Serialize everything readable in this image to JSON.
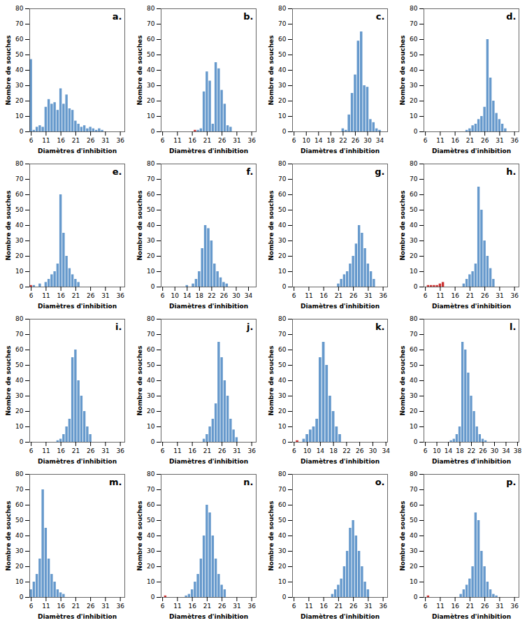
{
  "chart_data": [
    {
      "type": "bar",
      "annotation": "a.",
      "xlabel": "Diamètres d'inhibition",
      "ylabel": "Nombre de souches",
      "x": [
        6,
        7,
        8,
        9,
        10,
        11,
        12,
        13,
        14,
        15,
        16,
        17,
        18,
        19,
        20,
        21,
        22,
        23,
        24,
        25,
        26,
        27,
        28,
        29,
        30
      ],
      "values": [
        47,
        1,
        3,
        4,
        3,
        16,
        21,
        18,
        19,
        14,
        28,
        18,
        24,
        15,
        14,
        7,
        5,
        3,
        4,
        2,
        3,
        2,
        1,
        2,
        1
      ],
      "colors": [
        "#6699CC",
        "#6699CC",
        "#6699CC",
        "#6699CC",
        "#6699CC",
        "#6699CC",
        "#6699CC",
        "#6699CC",
        "#6699CC",
        "#6699CC",
        "#6699CC",
        "#6699CC",
        "#6699CC",
        "#6699CC",
        "#6699CC",
        "#6699CC",
        "#6699CC",
        "#6699CC",
        "#6699CC",
        "#6699CC",
        "#6699CC",
        "#6699CC",
        "#6699CC",
        "#6699CC",
        "#6699CC"
      ],
      "xlim": [
        5.5,
        37.5
      ],
      "xticks": [
        6,
        11,
        16,
        21,
        26,
        31,
        36
      ],
      "ylim": [
        0,
        80
      ],
      "yticks": [
        0,
        10,
        20,
        30,
        40,
        50,
        60,
        70,
        80
      ]
    },
    {
      "type": "bar",
      "annotation": "b.",
      "xlabel": "Diamètres d'inhibition",
      "ylabel": "Nombre de souches",
      "x": [
        18,
        19,
        20,
        21,
        22,
        23,
        24,
        25,
        26,
        27,
        28,
        29,
        17
      ],
      "values": [
        1,
        2,
        26,
        39,
        33,
        5,
        45,
        41,
        27,
        18,
        4,
        3,
        1
      ],
      "colors": [
        "#6699CC",
        "#6699CC",
        "#6699CC",
        "#6699CC",
        "#6699CC",
        "#6699CC",
        "#6699CC",
        "#6699CC",
        "#6699CC",
        "#6699CC",
        "#6699CC",
        "#6699CC",
        "#CC3333"
      ],
      "xlim": [
        5.5,
        37.5
      ],
      "xticks": [
        6,
        11,
        16,
        21,
        26,
        31,
        36
      ],
      "ylim": [
        0,
        80
      ],
      "yticks": [
        0,
        10,
        20,
        30,
        40,
        50,
        60,
        70,
        80
      ]
    },
    {
      "type": "bar",
      "annotation": "c.",
      "xlabel": "Diamètres d'inhibition",
      "ylabel": "Nombre de souches",
      "x": [
        22,
        23,
        24,
        25,
        26,
        27,
        28,
        29,
        30,
        31,
        32,
        33,
        34
      ],
      "values": [
        2,
        1,
        11,
        25,
        37,
        59,
        65,
        30,
        29,
        8,
        6,
        2,
        1
      ],
      "colors": [
        "#6699CC",
        "#6699CC",
        "#6699CC",
        "#6699CC",
        "#6699CC",
        "#6699CC",
        "#6699CC",
        "#6699CC",
        "#6699CC",
        "#6699CC",
        "#6699CC",
        "#6699CC",
        "#6699CC"
      ],
      "xlim": [
        5.5,
        36.5
      ],
      "xticks": [
        6,
        10,
        14,
        18,
        22,
        26,
        30,
        34
      ],
      "ylim": [
        0,
        80
      ],
      "yticks": [
        0,
        10,
        20,
        30,
        40,
        50,
        60,
        70,
        80
      ]
    },
    {
      "type": "bar",
      "annotation": "d.",
      "xlabel": "Diamètres d'inhibition",
      "ylabel": "Nombre de souches",
      "x": [
        20,
        21,
        22,
        23,
        24,
        25,
        26,
        27,
        28,
        29,
        30,
        31,
        32,
        33
      ],
      "values": [
        1,
        2,
        4,
        5,
        8,
        10,
        16,
        60,
        35,
        20,
        12,
        8,
        5,
        2
      ],
      "colors": [
        "#6699CC",
        "#6699CC",
        "#6699CC",
        "#6699CC",
        "#6699CC",
        "#6699CC",
        "#6699CC",
        "#6699CC",
        "#6699CC",
        "#6699CC",
        "#6699CC",
        "#6699CC",
        "#6699CC",
        "#6699CC"
      ],
      "xlim": [
        5.5,
        37.5
      ],
      "xticks": [
        6,
        11,
        16,
        21,
        26,
        31,
        36
      ],
      "ylim": [
        0,
        80
      ],
      "yticks": [
        0,
        10,
        20,
        30,
        40,
        50,
        60,
        70,
        80
      ]
    },
    {
      "type": "bar",
      "annotation": "e.",
      "xlabel": "Diamètres d'inhibition",
      "ylabel": "Nombre de souches",
      "x": [
        7,
        9,
        11,
        12,
        13,
        14,
        15,
        16,
        17,
        18,
        19,
        20,
        21,
        22,
        6
      ],
      "values": [
        1,
        2,
        3,
        5,
        8,
        10,
        15,
        60,
        35,
        20,
        12,
        8,
        5,
        3,
        1
      ],
      "colors": [
        "#6699CC",
        "#6699CC",
        "#6699CC",
        "#6699CC",
        "#6699CC",
        "#6699CC",
        "#6699CC",
        "#6699CC",
        "#6699CC",
        "#6699CC",
        "#6699CC",
        "#6699CC",
        "#6699CC",
        "#6699CC",
        "#CC3333"
      ],
      "xlim": [
        5.5,
        37.5
      ],
      "xticks": [
        6,
        11,
        16,
        21,
        26,
        31,
        36
      ],
      "ylim": [
        0,
        80
      ],
      "yticks": [
        0,
        10,
        20,
        30,
        40,
        50,
        60,
        70,
        80
      ]
    },
    {
      "type": "bar",
      "annotation": "f.",
      "xlabel": "Diamètres d'inhibition",
      "ylabel": "Nombre de souches",
      "x": [
        14,
        16,
        17,
        18,
        19,
        20,
        21,
        22,
        23,
        24,
        25,
        26,
        27
      ],
      "values": [
        1,
        2,
        5,
        10,
        25,
        40,
        38,
        30,
        15,
        10,
        6,
        3,
        2
      ],
      "colors": [
        "#6699CC",
        "#6699CC",
        "#6699CC",
        "#6699CC",
        "#6699CC",
        "#6699CC",
        "#6699CC",
        "#6699CC",
        "#6699CC",
        "#6699CC",
        "#6699CC",
        "#6699CC",
        "#6699CC"
      ],
      "xlim": [
        5.5,
        36.5
      ],
      "xticks": [
        6,
        10,
        14,
        18,
        22,
        26,
        30,
        34
      ],
      "ylim": [
        0,
        80
      ],
      "yticks": [
        0,
        10,
        20,
        30,
        40,
        50,
        60,
        70,
        80
      ]
    },
    {
      "type": "bar",
      "annotation": "g.",
      "xlabel": "Diamètres d'inhibition",
      "ylabel": "Nombre de souches",
      "x": [
        21,
        22,
        23,
        24,
        25,
        26,
        27,
        28,
        29,
        30,
        31,
        32,
        33
      ],
      "values": [
        2,
        5,
        8,
        10,
        15,
        20,
        28,
        40,
        35,
        25,
        15,
        10,
        5
      ],
      "colors": [
        "#6699CC",
        "#6699CC",
        "#6699CC",
        "#6699CC",
        "#6699CC",
        "#6699CC",
        "#6699CC",
        "#6699CC",
        "#6699CC",
        "#6699CC",
        "#6699CC",
        "#6699CC",
        "#6699CC"
      ],
      "xlim": [
        5.5,
        37.5
      ],
      "xticks": [
        6,
        11,
        16,
        21,
        26,
        31,
        36
      ],
      "ylim": [
        0,
        80
      ],
      "yticks": [
        0,
        10,
        20,
        30,
        40,
        50,
        60,
        70,
        80
      ]
    },
    {
      "type": "bar",
      "annotation": "h.",
      "xlabel": "Diamètres d'inhibition",
      "ylabel": "Nombre de souches",
      "x": [
        19,
        20,
        21,
        22,
        23,
        24,
        25,
        26,
        27,
        28,
        29,
        7,
        8,
        9,
        10,
        11,
        12
      ],
      "values": [
        2,
        5,
        8,
        10,
        15,
        65,
        50,
        30,
        20,
        12,
        5,
        1,
        1,
        1,
        1,
        2,
        3
      ],
      "colors": [
        "#6699CC",
        "#6699CC",
        "#6699CC",
        "#6699CC",
        "#6699CC",
        "#6699CC",
        "#6699CC",
        "#6699CC",
        "#6699CC",
        "#6699CC",
        "#6699CC",
        "#CC3333",
        "#CC3333",
        "#CC3333",
        "#CC3333",
        "#CC3333",
        "#CC3333"
      ],
      "xlim": [
        5.5,
        37.5
      ],
      "xticks": [
        6,
        11,
        16,
        21,
        26,
        31,
        36
      ],
      "ylim": [
        0,
        80
      ],
      "yticks": [
        0,
        10,
        20,
        30,
        40,
        50,
        60,
        70,
        80
      ]
    },
    {
      "type": "bar",
      "annotation": "i.",
      "xlabel": "Diamètres d'inhibition",
      "ylabel": "Nombre de souches",
      "x": [
        15,
        16,
        17,
        18,
        19,
        20,
        21,
        22,
        23,
        24,
        25,
        26
      ],
      "values": [
        1,
        2,
        5,
        10,
        15,
        55,
        60,
        40,
        30,
        20,
        10,
        5
      ],
      "colors": [
        "#6699CC",
        "#6699CC",
        "#6699CC",
        "#6699CC",
        "#6699CC",
        "#6699CC",
        "#6699CC",
        "#6699CC",
        "#6699CC",
        "#6699CC",
        "#6699CC",
        "#6699CC"
      ],
      "xlim": [
        5.5,
        37.5
      ],
      "xticks": [
        6,
        11,
        16,
        21,
        26,
        31,
        36
      ],
      "ylim": [
        0,
        80
      ],
      "yticks": [
        0,
        10,
        20,
        30,
        40,
        50,
        60,
        70,
        80
      ]
    },
    {
      "type": "bar",
      "annotation": "j.",
      "xlabel": "Diamètres d'inhibition",
      "ylabel": "Nombre de souches",
      "x": [
        20,
        21,
        22,
        23,
        24,
        25,
        26,
        27,
        28,
        29,
        30,
        31
      ],
      "values": [
        2,
        5,
        10,
        15,
        25,
        65,
        55,
        40,
        30,
        15,
        8,
        3
      ],
      "colors": [
        "#6699CC",
        "#6699CC",
        "#6699CC",
        "#6699CC",
        "#6699CC",
        "#6699CC",
        "#6699CC",
        "#6699CC",
        "#6699CC",
        "#6699CC",
        "#6699CC",
        "#6699CC"
      ],
      "xlim": [
        5.5,
        37.5
      ],
      "xticks": [
        6,
        11,
        16,
        21,
        26,
        31,
        36
      ],
      "ylim": [
        0,
        80
      ],
      "yticks": [
        0,
        10,
        20,
        30,
        40,
        50,
        60,
        70,
        80
      ]
    },
    {
      "type": "bar",
      "annotation": "k.",
      "xlabel": "Diamètres d'inhibition",
      "ylabel": "Nombre de souches",
      "x": [
        9,
        10,
        11,
        12,
        13,
        14,
        15,
        16,
        17,
        18,
        19,
        20,
        7
      ],
      "values": [
        2,
        5,
        8,
        10,
        15,
        55,
        65,
        50,
        30,
        20,
        10,
        5,
        1
      ],
      "colors": [
        "#6699CC",
        "#6699CC",
        "#6699CC",
        "#6699CC",
        "#6699CC",
        "#6699CC",
        "#6699CC",
        "#6699CC",
        "#6699CC",
        "#6699CC",
        "#6699CC",
        "#6699CC",
        "#CC3333"
      ],
      "xlim": [
        5.5,
        34.5
      ],
      "xticks": [
        6,
        10,
        14,
        18,
        22,
        26,
        30,
        34
      ],
      "ylim": [
        0,
        80
      ],
      "yticks": [
        0,
        10,
        20,
        30,
        40,
        50,
        60,
        70,
        80
      ]
    },
    {
      "type": "bar",
      "annotation": "l.",
      "xlabel": "Diamètres d'inhibition",
      "ylabel": "Nombre de souches",
      "x": [
        15,
        16,
        17,
        18,
        19,
        20,
        21,
        22,
        23,
        24,
        25,
        26,
        27
      ],
      "values": [
        1,
        2,
        5,
        10,
        65,
        60,
        45,
        30,
        20,
        10,
        5,
        2,
        1
      ],
      "colors": [
        "#6699CC",
        "#6699CC",
        "#6699CC",
        "#6699CC",
        "#6699CC",
        "#6699CC",
        "#6699CC",
        "#6699CC",
        "#6699CC",
        "#6699CC",
        "#6699CC",
        "#6699CC",
        "#6699CC"
      ],
      "xlim": [
        5.5,
        38.5
      ],
      "xticks": [
        6,
        10,
        14,
        18,
        22,
        26,
        30,
        34,
        38
      ],
      "ylim": [
        0,
        80
      ],
      "yticks": [
        0,
        10,
        20,
        30,
        40,
        50,
        60,
        70,
        80
      ]
    },
    {
      "type": "bar",
      "annotation": "m.",
      "xlabel": "Diamètres d'inhibition",
      "ylabel": "Nombre de souches",
      "x": [
        6,
        7,
        8,
        9,
        10,
        11,
        12,
        13,
        14,
        15,
        16,
        17
      ],
      "values": [
        5,
        10,
        15,
        25,
        70,
        45,
        25,
        15,
        10,
        5,
        3,
        2
      ],
      "colors": [
        "#6699CC",
        "#6699CC",
        "#6699CC",
        "#6699CC",
        "#6699CC",
        "#6699CC",
        "#6699CC",
        "#6699CC",
        "#6699CC",
        "#6699CC",
        "#6699CC",
        "#6699CC"
      ],
      "xlim": [
        5.5,
        37.5
      ],
      "xticks": [
        6,
        11,
        16,
        21,
        26,
        31,
        36
      ],
      "ylim": [
        0,
        80
      ],
      "yticks": [
        0,
        10,
        20,
        30,
        40,
        50,
        60,
        70,
        80
      ]
    },
    {
      "type": "bar",
      "annotation": "n.",
      "xlabel": "Diamètres d'inhibition",
      "ylabel": "Nombre de souches",
      "x": [
        14,
        15,
        16,
        17,
        18,
        19,
        20,
        21,
        22,
        23,
        24,
        25,
        26,
        27,
        7
      ],
      "values": [
        1,
        2,
        5,
        10,
        15,
        25,
        40,
        60,
        55,
        40,
        25,
        15,
        8,
        5,
        1
      ],
      "colors": [
        "#6699CC",
        "#6699CC",
        "#6699CC",
        "#6699CC",
        "#6699CC",
        "#6699CC",
        "#6699CC",
        "#6699CC",
        "#6699CC",
        "#6699CC",
        "#6699CC",
        "#6699CC",
        "#6699CC",
        "#6699CC",
        "#CC3333"
      ],
      "xlim": [
        5.5,
        37.5
      ],
      "xticks": [
        6,
        11,
        16,
        21,
        26,
        31,
        36
      ],
      "ylim": [
        0,
        80
      ],
      "yticks": [
        0,
        10,
        20,
        30,
        40,
        50,
        60,
        70,
        80
      ]
    },
    {
      "type": "bar",
      "annotation": "o.",
      "xlabel": "Diamètres d'inhibition",
      "ylabel": "Nombre de souches",
      "x": [
        19,
        20,
        21,
        22,
        23,
        24,
        25,
        26,
        27,
        28,
        29,
        30,
        31
      ],
      "values": [
        2,
        5,
        8,
        12,
        20,
        30,
        45,
        50,
        40,
        30,
        20,
        10,
        5
      ],
      "colors": [
        "#6699CC",
        "#6699CC",
        "#6699CC",
        "#6699CC",
        "#6699CC",
        "#6699CC",
        "#6699CC",
        "#6699CC",
        "#6699CC",
        "#6699CC",
        "#6699CC",
        "#6699CC",
        "#6699CC"
      ],
      "xlim": [
        5.5,
        37.5
      ],
      "xticks": [
        6,
        11,
        16,
        21,
        26,
        31,
        36
      ],
      "ylim": [
        0,
        80
      ],
      "yticks": [
        0,
        10,
        20,
        30,
        40,
        50,
        60,
        70,
        80
      ]
    },
    {
      "type": "bar",
      "annotation": "p.",
      "xlabel": "Diamètres d'inhibition",
      "ylabel": "Nombre de souches",
      "x": [
        18,
        19,
        20,
        21,
        22,
        23,
        24,
        25,
        26,
        27,
        28,
        29,
        30,
        7
      ],
      "values": [
        2,
        5,
        8,
        12,
        20,
        55,
        50,
        30,
        20,
        10,
        5,
        2,
        1,
        1
      ],
      "colors": [
        "#6699CC",
        "#6699CC",
        "#6699CC",
        "#6699CC",
        "#6699CC",
        "#6699CC",
        "#6699CC",
        "#6699CC",
        "#6699CC",
        "#6699CC",
        "#6699CC",
        "#6699CC",
        "#6699CC",
        "#CC3333"
      ],
      "xlim": [
        5.5,
        37.5
      ],
      "xticks": [
        6,
        11,
        16,
        21,
        26,
        31,
        36
      ],
      "ylim": [
        0,
        80
      ],
      "yticks": [
        0,
        10,
        20,
        30,
        40,
        50,
        60,
        70,
        80
      ]
    }
  ]
}
